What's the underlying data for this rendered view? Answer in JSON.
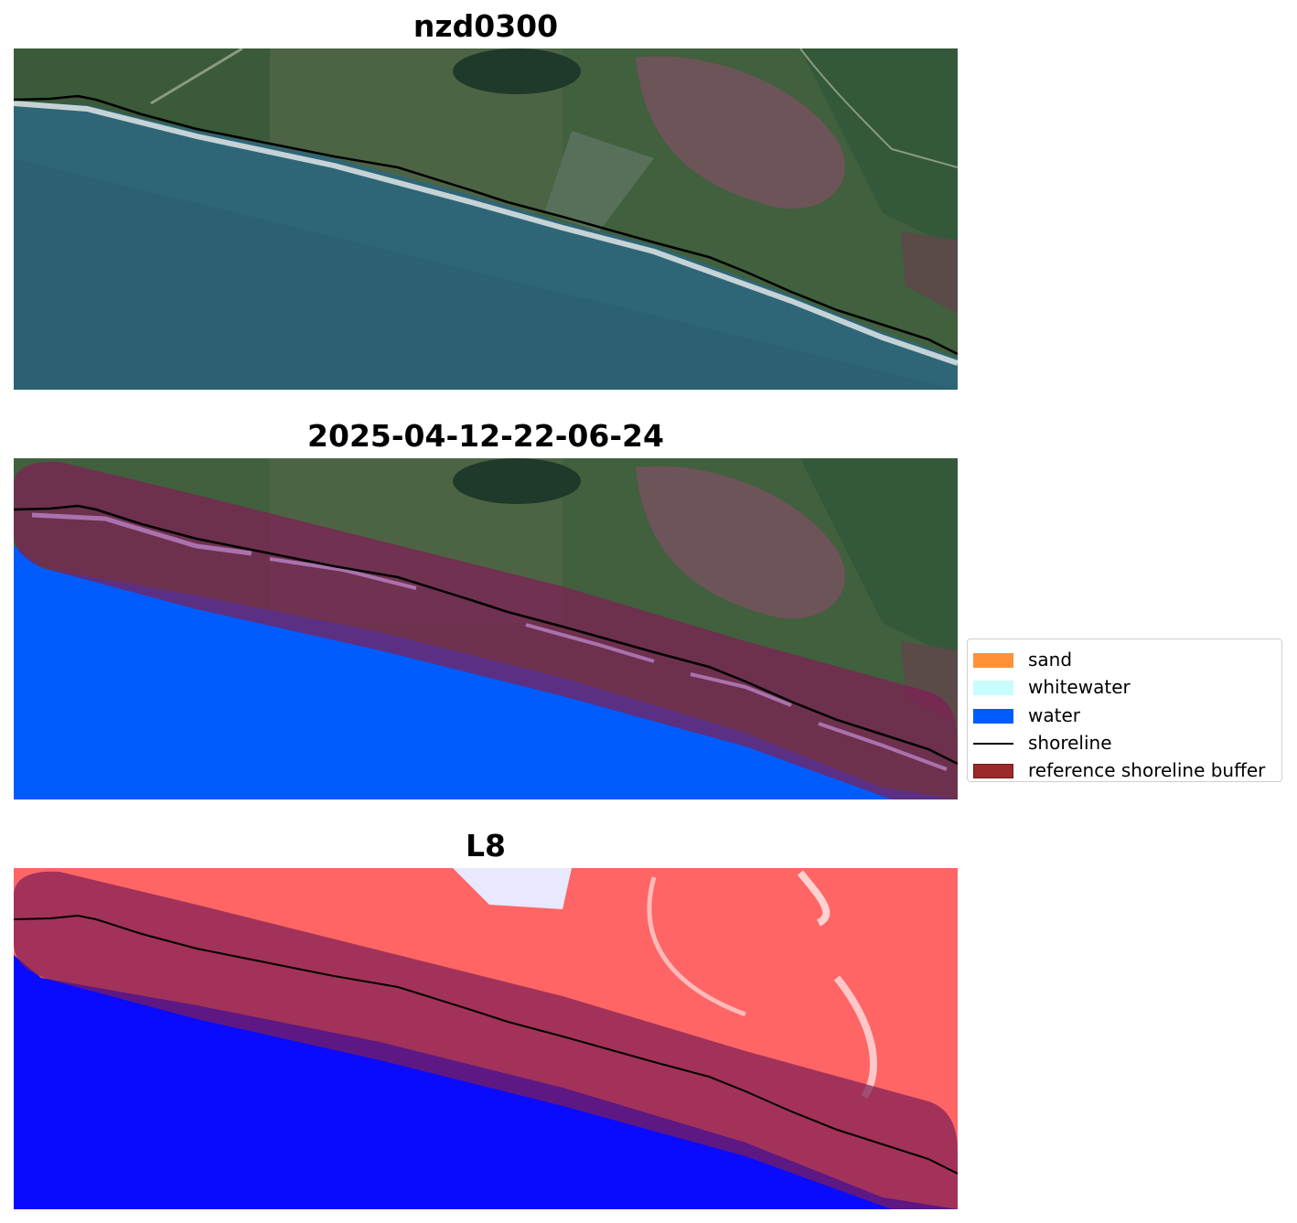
{
  "panels": [
    {
      "title": "nzd0300"
    },
    {
      "title": "2025-04-12-22-06-24"
    },
    {
      "title": "L8"
    }
  ],
  "legend": {
    "items": [
      {
        "label": "sand",
        "color": "#ff9138",
        "kind": "patch"
      },
      {
        "label": "whitewater",
        "color": "#c8fdfd",
        "kind": "patch"
      },
      {
        "label": "water",
        "color": "#005cfe",
        "kind": "patch"
      },
      {
        "label": "shoreline",
        "color": "#000000",
        "kind": "line"
      },
      {
        "label": "reference shoreline buffer",
        "color": "#9b2a2a",
        "kind": "patch"
      }
    ]
  },
  "colors": {
    "ocean": "#2f6677",
    "land": "#3e5a3a",
    "whitewater_overlay": "#d7d7d7",
    "water_class": "#005cfe",
    "buffer": "#7e1e55",
    "land_index": "#ff6b6b",
    "water_index": "#0a0aff"
  }
}
